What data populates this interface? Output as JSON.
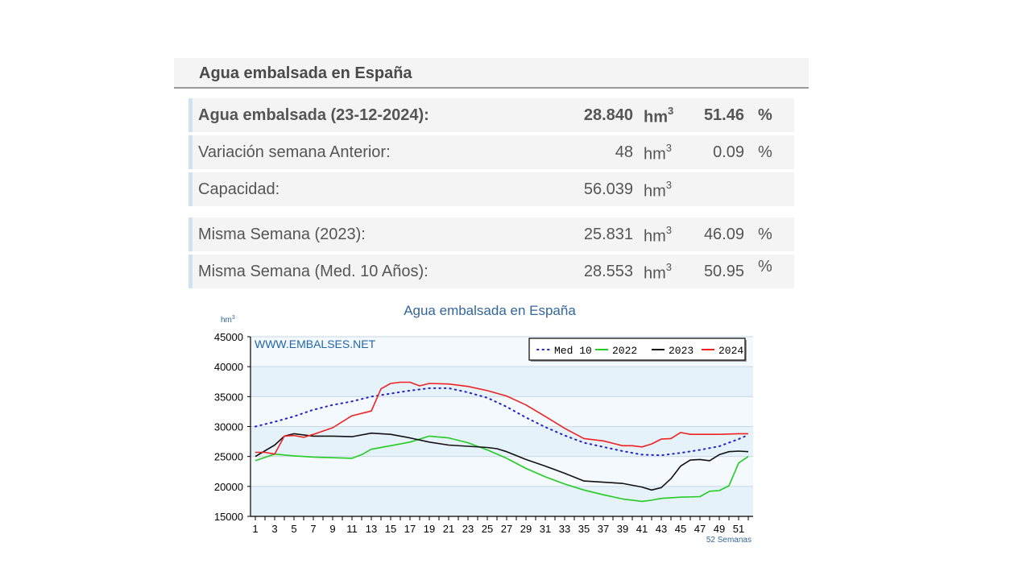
{
  "panel": {
    "title": "Agua embalsada en España"
  },
  "rows": [
    {
      "label": "Agua embalsada (23-12-2024):",
      "value": "28.840",
      "unit": "hm",
      "unit_sup": "3",
      "pct": "51.46",
      "pct_sign": "%"
    },
    {
      "label": "Variación semana Anterior:",
      "value": "48",
      "unit": "hm",
      "unit_sup": "3",
      "pct": "0.09",
      "pct_sign": "%"
    },
    {
      "label": "Capacidad:",
      "value": "56.039",
      "unit": "hm",
      "unit_sup": "3",
      "pct": "",
      "pct_sign": ""
    },
    {
      "label": "Misma Semana (2023):",
      "value": "25.831",
      "unit": "hm",
      "unit_sup": "3",
      "pct": "46.09",
      "pct_sign": "%"
    },
    {
      "label": "Misma Semana (Med. 10 Años):",
      "value": "28.553",
      "unit": "hm",
      "unit_sup": "3",
      "pct": "50.95",
      "pct_sign": "%"
    }
  ],
  "chart_data": {
    "type": "line",
    "title": "Agua embalsada en España",
    "ylabel": "hm",
    "ylabel_sup": "3",
    "xlabel": "52 Semanas",
    "watermark": "WWW.EMBALSES.NET",
    "ylim": [
      15000,
      45000
    ],
    "yticks": [
      15000,
      20000,
      25000,
      30000,
      35000,
      40000,
      45000
    ],
    "xlim": [
      1,
      52
    ],
    "xticks": [
      1,
      3,
      5,
      7,
      9,
      11,
      13,
      15,
      17,
      19,
      21,
      23,
      25,
      27,
      29,
      31,
      33,
      35,
      37,
      39,
      41,
      43,
      45,
      47,
      49,
      51
    ],
    "legend_position": "top-right",
    "grid": true,
    "colors": {
      "plot_band": "#e6f2fa",
      "plot_band_alt": "#f4f9fd"
    },
    "series": [
      {
        "name": "Med 10",
        "color": "#2222cc",
        "style": "dotted",
        "x": [
          1,
          3,
          5,
          7,
          9,
          11,
          13,
          15,
          17,
          19,
          21,
          23,
          25,
          27,
          29,
          31,
          33,
          35,
          37,
          39,
          41,
          43,
          45,
          47,
          49,
          51,
          52
        ],
        "y": [
          30000,
          30800,
          31700,
          32800,
          33600,
          34200,
          35000,
          35500,
          36000,
          36400,
          36400,
          35700,
          34800,
          33300,
          31500,
          29900,
          28500,
          27300,
          26600,
          25900,
          25300,
          25200,
          25600,
          26100,
          26700,
          27900,
          28600
        ]
      },
      {
        "name": "2022",
        "color": "#22cc22",
        "style": "solid",
        "x": [
          1,
          3,
          5,
          7,
          9,
          11,
          12,
          13,
          15,
          17,
          19,
          21,
          23,
          25,
          27,
          29,
          31,
          33,
          35,
          37,
          39,
          41,
          42,
          43,
          45,
          47,
          48,
          49,
          50,
          51,
          52
        ],
        "y": [
          24300,
          25400,
          25100,
          24900,
          24800,
          24700,
          25300,
          26200,
          26800,
          27400,
          28400,
          28100,
          27300,
          26100,
          24700,
          23000,
          21600,
          20400,
          19400,
          18600,
          17900,
          17500,
          17700,
          18000,
          18200,
          18300,
          19200,
          19300,
          20100,
          23900,
          25000
        ]
      },
      {
        "name": "2023",
        "color": "#111111",
        "style": "solid",
        "x": [
          1,
          3,
          4,
          5,
          7,
          9,
          11,
          13,
          15,
          17,
          19,
          21,
          23,
          25,
          26,
          27,
          29,
          31,
          33,
          35,
          37,
          39,
          41,
          42,
          43,
          44,
          45,
          46,
          47,
          48,
          49,
          50,
          51,
          52
        ],
        "y": [
          25000,
          26900,
          28400,
          28800,
          28400,
          28400,
          28300,
          28900,
          28700,
          28100,
          27400,
          26900,
          26700,
          26500,
          26300,
          25800,
          24500,
          23400,
          22200,
          20900,
          20700,
          20500,
          19900,
          19400,
          19800,
          21300,
          23400,
          24400,
          24500,
          24300,
          25300,
          25800,
          25900,
          25800
        ]
      },
      {
        "name": "2024",
        "color": "#ee2222",
        "style": "solid",
        "x": [
          1,
          2,
          3,
          4,
          5,
          6,
          7,
          9,
          11,
          13,
          14,
          15,
          16,
          17,
          18,
          19,
          21,
          23,
          25,
          27,
          29,
          31,
          33,
          35,
          37,
          39,
          40,
          41,
          42,
          43,
          44,
          45,
          46,
          47,
          49,
          51,
          52
        ],
        "y": [
          25700,
          25700,
          25400,
          28400,
          28500,
          28200,
          28700,
          29800,
          31800,
          32600,
          36300,
          37200,
          37400,
          37400,
          36800,
          37200,
          37100,
          36700,
          36000,
          35100,
          33600,
          31700,
          29700,
          28000,
          27600,
          26800,
          26800,
          26600,
          27100,
          27900,
          28000,
          29000,
          28700,
          28700,
          28700,
          28800,
          28800
        ]
      }
    ]
  }
}
